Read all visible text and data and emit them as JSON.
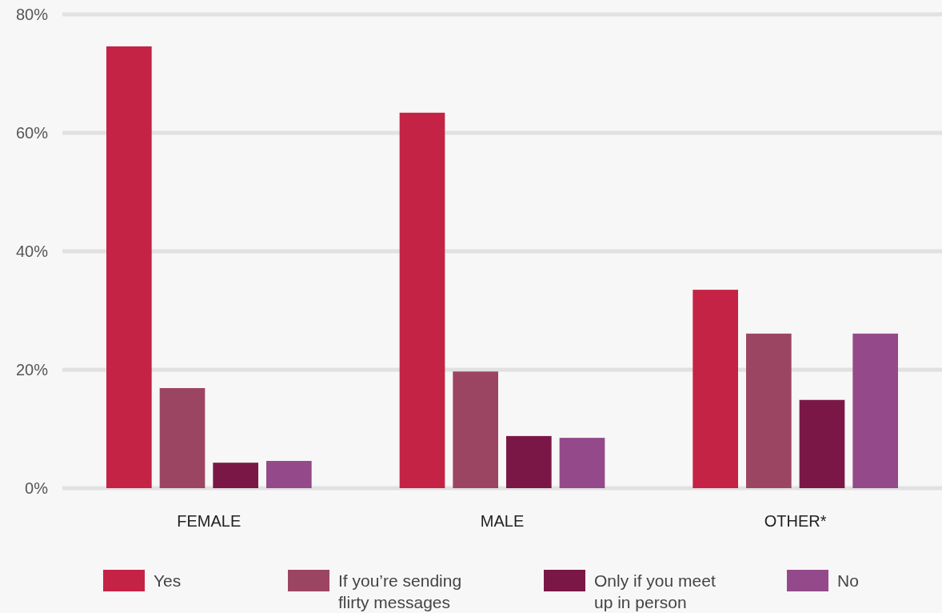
{
  "chart_data": {
    "type": "bar",
    "categories": [
      "FEMALE",
      "MALE",
      "OTHER*"
    ],
    "series": [
      {
        "name": "Yes",
        "color": "#c52345",
        "values": [
          74.6,
          63.4,
          33.5
        ]
      },
      {
        "name": "If you’re sending flirty messages",
        "color": "#9c4562",
        "values": [
          16.9,
          19.7,
          26.1
        ]
      },
      {
        "name": "Only if you meet up in person",
        "color": "#7b1746",
        "values": [
          4.3,
          8.8,
          14.9
        ]
      },
      {
        "name": "No",
        "color": "#944a8a",
        "values": [
          4.6,
          8.5,
          26.1
        ]
      }
    ],
    "ylim": [
      0,
      80
    ],
    "yticks": [
      {
        "value": 0,
        "label": "0%"
      },
      {
        "value": 20,
        "label": "20%"
      },
      {
        "value": 40,
        "label": "40%"
      },
      {
        "value": 60,
        "label": "60%"
      },
      {
        "value": 80,
        "label": "80%"
      }
    ],
    "grid": "y",
    "legend": "bottom"
  }
}
